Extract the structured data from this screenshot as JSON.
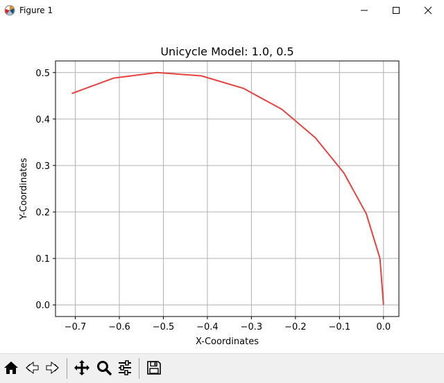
{
  "window": {
    "title": "Figure 1",
    "controls": {
      "minimize_icon": "minimize-icon",
      "maximize_icon": "maximize-icon",
      "close_icon": "close-icon"
    }
  },
  "toolbar": {
    "tools": [
      {
        "name": "home-button",
        "icon": "home-icon"
      },
      {
        "name": "back-button",
        "icon": "back-arrow-icon"
      },
      {
        "name": "forward-button",
        "icon": "forward-arrow-icon"
      },
      {
        "name": "pan-button",
        "icon": "move-icon"
      },
      {
        "name": "zoom-button",
        "icon": "magnifier-icon"
      },
      {
        "name": "configure-subplots-button",
        "icon": "sliders-icon"
      },
      {
        "name": "save-button",
        "icon": "floppy-disk-icon"
      }
    ]
  },
  "chart_data": {
    "type": "line",
    "title": "Unicycle Model: 1.0, 0.5",
    "xlabel": "X-Coordinates",
    "ylabel": "Y-Coordinates",
    "xlim": [
      -0.745,
      0.035
    ],
    "ylim": [
      -0.025,
      0.525
    ],
    "xticks": [
      -0.7,
      -0.6,
      -0.5,
      -0.4,
      -0.3,
      -0.2,
      -0.1,
      0.0
    ],
    "xtick_labels": [
      "−0.7",
      "−0.6",
      "−0.5",
      "−0.4",
      "−0.3",
      "−0.2",
      "−0.1",
      "0.0"
    ],
    "yticks": [
      0.0,
      0.1,
      0.2,
      0.3,
      0.4,
      0.5
    ],
    "ytick_labels": [
      "0.0",
      "0.1",
      "0.2",
      "0.3",
      "0.4",
      "0.5"
    ],
    "grid": true,
    "series": [
      {
        "color": "#e8423f",
        "x": [
          0.0,
          -0.008,
          -0.039,
          -0.09,
          -0.155,
          -0.231,
          -0.318,
          -0.414,
          -0.514,
          -0.613,
          -0.708
        ],
        "y": [
          0.0,
          0.1,
          0.196,
          0.284,
          0.36,
          0.421,
          0.466,
          0.493,
          0.5,
          0.488,
          0.455
        ]
      }
    ]
  }
}
